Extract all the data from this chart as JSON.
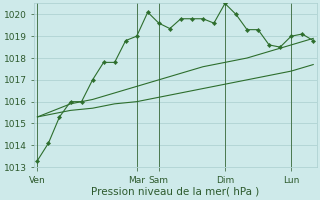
{
  "title": "",
  "xlabel": "Pression niveau de la mer( hPa )",
  "bg_color": "#ceeaea",
  "grid_color": "#aacece",
  "line_color": "#2d6e2d",
  "ylim": [
    1013,
    1020.5
  ],
  "yticks": [
    1013,
    1014,
    1015,
    1016,
    1017,
    1018,
    1019,
    1020
  ],
  "x_ticks_labels": [
    "Ven",
    "Mar",
    "Sam",
    "Dim",
    "Lun"
  ],
  "x_ticks_pos": [
    0,
    9,
    11,
    17,
    23
  ],
  "n_points": 26,
  "series0": [
    1013.3,
    1014.1,
    1015.3,
    1016.0,
    1016.0,
    1017.0,
    1017.8,
    1017.8,
    1018.8,
    1019.0,
    1020.1,
    1019.6,
    1019.35,
    1019.8,
    1019.8,
    1019.8,
    1019.6,
    1020.5,
    1020.0,
    1019.3,
    1019.3,
    1018.6,
    1018.5,
    1019.0,
    1019.1,
    1018.8
  ],
  "series1": [
    1015.3,
    1015.5,
    1015.7,
    1015.9,
    1016.0,
    1016.1,
    1016.25,
    1016.4,
    1016.55,
    1016.7,
    1016.85,
    1017.0,
    1017.15,
    1017.3,
    1017.45,
    1017.6,
    1017.7,
    1017.8,
    1017.9,
    1018.0,
    1018.15,
    1018.3,
    1018.45,
    1018.6,
    1018.75,
    1018.9
  ],
  "series2": [
    1015.3,
    1015.4,
    1015.5,
    1015.6,
    1015.65,
    1015.7,
    1015.8,
    1015.9,
    1015.95,
    1016.0,
    1016.1,
    1016.2,
    1016.3,
    1016.4,
    1016.5,
    1016.6,
    1016.7,
    1016.8,
    1016.9,
    1017.0,
    1017.1,
    1017.2,
    1017.3,
    1017.4,
    1017.55,
    1017.7
  ],
  "vline_pos": [
    0,
    9,
    11,
    17,
    23
  ],
  "vline_color": "#3a6a3a",
  "tick_color": "#2d5a2d",
  "label_fontsize": 6.5,
  "xlabel_fontsize": 7.5
}
